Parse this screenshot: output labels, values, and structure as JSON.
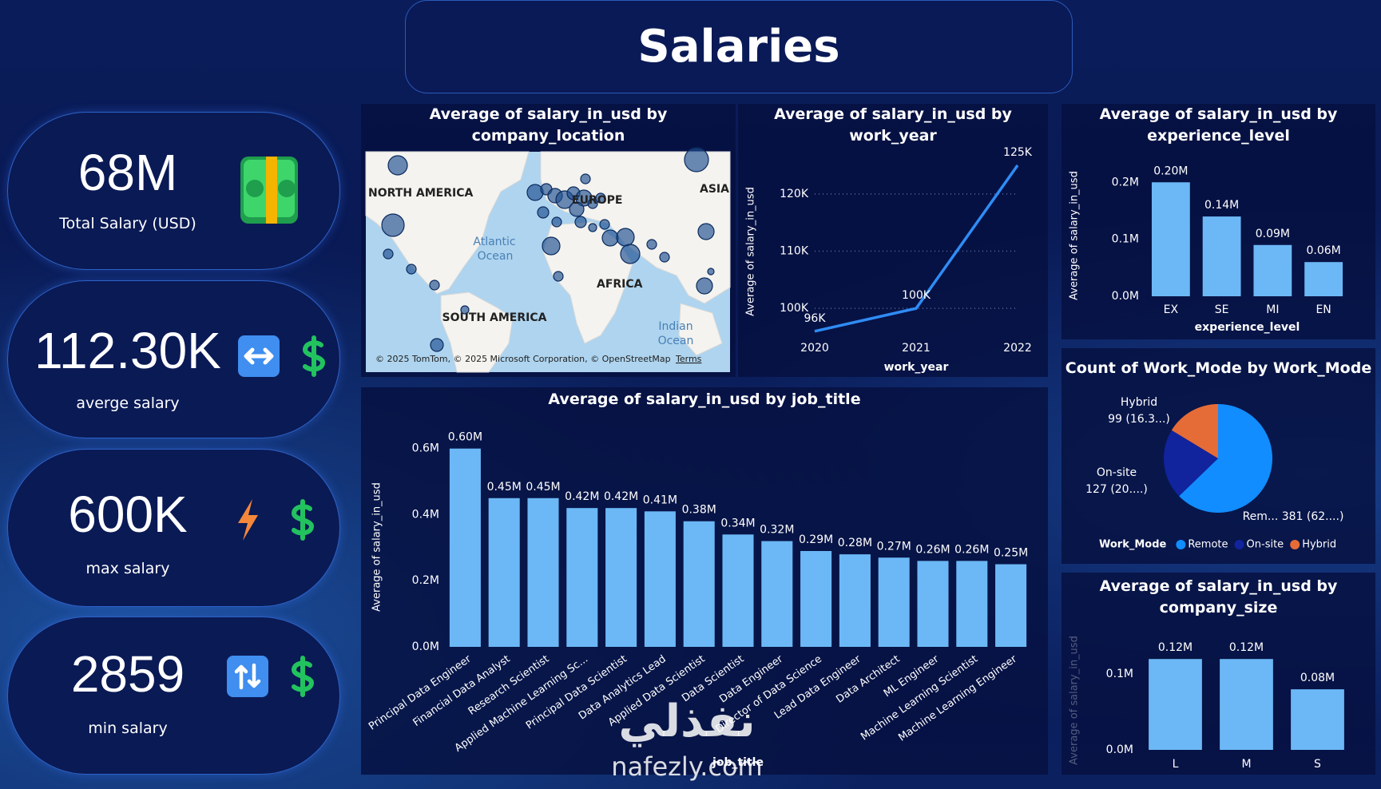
{
  "title": "Salaries",
  "kpis": [
    {
      "value": "68M",
      "label": "Total Salary (USD)"
    },
    {
      "value": "112.30K",
      "label": "averge salary"
    },
    {
      "value": "600K",
      "label": "max salary"
    },
    {
      "value": "2859",
      "label": "min salary"
    }
  ],
  "watermark": [
    "نفذلي",
    "nafezly.com"
  ],
  "chart_data": [
    {
      "type": "map",
      "title": "Average of salary_in_usd by company_location",
      "labels": [
        "NORTH AMERICA",
        "EUROPE",
        "ASIA",
        "Atlantic",
        "Ocean",
        "AFRICA",
        "SOUTH AMERICA",
        "Indian",
        "Ocean"
      ],
      "attribution": "© 2025 TomTom, © 2025 Microsoft Corporation, © OpenStreetMap",
      "terms": "Terms"
    },
    {
      "type": "line",
      "title": "Average of salary_in_usd by work_year",
      "x": [
        2020,
        2021,
        2022
      ],
      "values": [
        96000,
        100000,
        125000
      ],
      "value_labels": [
        "96K",
        "100K",
        "125K"
      ],
      "color": "#2f8cf5",
      "xlim": [
        2020,
        2022
      ],
      "xticks": [
        2020,
        2021,
        2022
      ],
      "ylim": [
        95000,
        125000
      ],
      "yticks": [
        {
          "value": 100000,
          "label": "100K"
        },
        {
          "value": 110000,
          "label": "110K"
        },
        {
          "value": 120000,
          "label": "120K"
        }
      ],
      "grid": true,
      "xlabel": "work_year",
      "ylabel": "Average of salary_in_usd"
    },
    {
      "type": "bar",
      "title": "Average of salary_in_usd by experience_level",
      "categories": [
        "EX",
        "SE",
        "MI",
        "EN"
      ],
      "values": [
        200000,
        140000,
        90000,
        60000
      ],
      "value_labels": [
        "0.20M",
        "0.14M",
        "0.09M",
        "0.06M"
      ],
      "color": "#6cb8f6",
      "ylim": [
        0,
        220000
      ],
      "yticks": [
        {
          "value": 0,
          "label": "0.0M"
        },
        {
          "value": 100000,
          "label": "0.1M"
        },
        {
          "value": 200000,
          "label": "0.2M"
        }
      ],
      "grid": false,
      "xlabel": "experience_level",
      "ylabel": "Average of salary_in_usd"
    },
    {
      "type": "pie",
      "title": "Count of Work_Mode by Work_Mode",
      "categories": [
        "Remote",
        "On-site",
        "Hybrid"
      ],
      "values": [
        381,
        127,
        99
      ],
      "value_labels": [
        [
          "Rem... 381 (62....)"
        ],
        [
          "On-site",
          "127 (20....)"
        ],
        [
          "Hybrid",
          "99 (16.3...)"
        ]
      ],
      "colors": [
        "#118dff",
        "#12239e",
        "#e66c37"
      ],
      "legend_title": "Work_Mode",
      "legend": "bottom"
    },
    {
      "type": "bar",
      "title": "Average of salary_in_usd by job_title",
      "categories": [
        "Principal Data Engineer",
        "Financial Data Analyst",
        "Research Scientist",
        "Applied Machine Learning Sc...",
        "Principal Data Scientist",
        "Data Analytics Lead",
        "Applied Data Scientist",
        "Data Scientist",
        "Data Engineer",
        "Director of Data Science",
        "Lead Data Engineer",
        "Data Architect",
        "ML Engineer",
        "Machine Learning Scientist",
        "Machine Learning Engineer"
      ],
      "values": [
        600000,
        450000,
        450000,
        420000,
        420000,
        410000,
        380000,
        340000,
        320000,
        290000,
        280000,
        270000,
        260000,
        260000,
        250000
      ],
      "value_labels": [
        "0.60M",
        "0.45M",
        "0.45M",
        "0.42M",
        "0.42M",
        "0.41M",
        "0.38M",
        "0.34M",
        "0.32M",
        "0.29M",
        "0.28M",
        "0.27M",
        "0.26M",
        "0.26M",
        "0.25M"
      ],
      "color": "#6cb8f6",
      "ylim": [
        0,
        650000
      ],
      "yticks": [
        {
          "value": 0,
          "label": "0.0M"
        },
        {
          "value": 200000,
          "label": "0.2M"
        },
        {
          "value": 400000,
          "label": "0.4M"
        },
        {
          "value": 600000,
          "label": "0.6M"
        }
      ],
      "grid": false,
      "xlabel": "job_title",
      "ylabel": "Average of salary_in_usd"
    },
    {
      "type": "bar",
      "title": "Average of salary_in_usd by company_size",
      "categories": [
        "L",
        "M",
        "S"
      ],
      "values": [
        120000,
        120000,
        80000
      ],
      "value_labels": [
        "0.12M",
        "0.12M",
        "0.08M"
      ],
      "color": "#6cb8f6",
      "ylim": [
        0,
        135000
      ],
      "yticks": [
        {
          "value": 0,
          "label": "0.0M"
        },
        {
          "value": 100000,
          "label": "0.1M"
        }
      ],
      "grid": false,
      "ylabel": "Average of salary_in_usd"
    }
  ]
}
